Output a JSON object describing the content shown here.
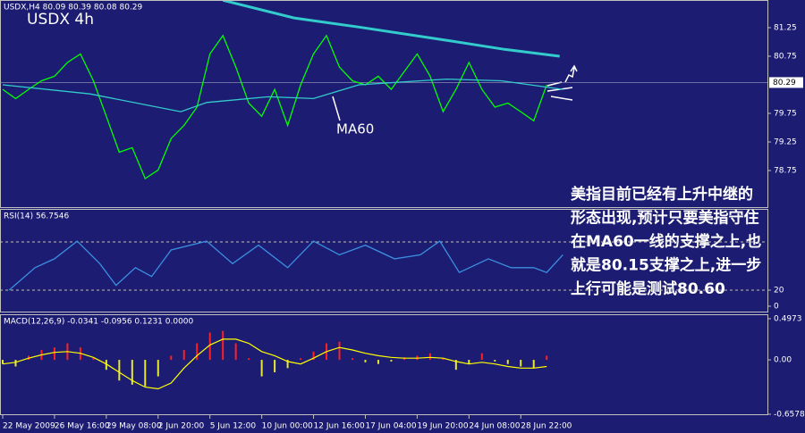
{
  "chart_data": [
    {
      "type": "line",
      "header": "USDX,H4  80.09 80.39 80.08 80.29",
      "title": "USDX 4h",
      "annotation": "MA60",
      "note_lines": [
        "美指目前已经有上升中继的",
        "形态出现,预计只要美指守住",
        "在MA60一线的支撑之上,也",
        "就是80.15支撑之上,进一步",
        "上行可能是测试80.60"
      ],
      "xlim": [
        0,
        237
      ],
      "ylim": [
        78.11,
        81.734
      ],
      "yticks": [
        81.25,
        80.75,
        79.75,
        79.25,
        78.75
      ],
      "last_price": 80.29,
      "series": [
        {
          "color": "#00ff00",
          "x": [
            0,
            4,
            8,
            12,
            16,
            20,
            24,
            28,
            32,
            36,
            40,
            44,
            48,
            52,
            56,
            60,
            64,
            68,
            72,
            76,
            80,
            84,
            88,
            92,
            96,
            100,
            104,
            108,
            112,
            116,
            120,
            124,
            128,
            132,
            136,
            140,
            144,
            148,
            152,
            156,
            160,
            164,
            168
          ],
          "values": [
            80.17,
            80.01,
            80.17,
            80.32,
            80.4,
            80.64,
            80.79,
            80.32,
            79.7,
            79.07,
            79.15,
            78.61,
            78.76,
            79.31,
            79.54,
            79.86,
            80.79,
            81.11,
            80.56,
            79.93,
            79.7,
            80.17,
            79.54,
            80.25,
            80.79,
            81.11,
            80.56,
            80.32,
            80.25,
            80.4,
            80.17,
            80.48,
            80.79,
            80.4,
            79.78,
            80.17,
            80.64,
            80.17,
            79.86,
            79.93,
            79.78,
            79.62,
            80.25
          ]
        },
        {
          "color": "#33cccc",
          "x": [
            0,
            27,
            55,
            63,
            82,
            96,
            110,
            137,
            154,
            173
          ],
          "values": [
            80.25,
            80.09,
            79.78,
            79.94,
            80.04,
            80.01,
            80.25,
            80.35,
            80.32,
            80.17
          ]
        },
        {
          "color": "#33cccc",
          "x": [
            68,
            90,
            110,
            137,
            155,
            172
          ],
          "values": [
            81.73,
            81.42,
            81.26,
            81.03,
            80.87,
            80.75
          ]
        }
      ]
    },
    {
      "type": "line",
      "header": "RSI(14) 56.7546",
      "xlim": [
        0,
        237
      ],
      "ylim": [
        0,
        100
      ],
      "yticks": [
        20,
        0
      ],
      "levels": [
        20,
        80
      ],
      "series": [
        {
          "color": "#3b8fe0",
          "x": [
            2,
            10,
            16,
            23,
            30,
            35,
            41,
            46,
            52,
            63,
            71,
            79,
            88,
            96,
            104,
            112,
            121,
            129,
            135,
            141,
            150,
            157,
            164,
            168,
            173
          ],
          "values": [
            20,
            48,
            59,
            81,
            53,
            26,
            48,
            37,
            70,
            81,
            53,
            76,
            48,
            81,
            64,
            76,
            59,
            64,
            81,
            42,
            59,
            48,
            48,
            42,
            64
          ]
        }
      ]
    },
    {
      "type": "bar",
      "header": "MACD(12,26,9) -0.0341 -0.0956 0.1231 0.0000",
      "xlim": [
        0,
        237
      ],
      "ylim": [
        -0.6578,
        0.4973
      ],
      "yticks": [
        0.4973,
        {
          "value": 0,
          "label": "0.00"
        },
        -0.6578
      ],
      "xticks": [
        {
          "value": 0,
          "label": "22 May 2009"
        },
        {
          "value": 16,
          "label": "26 May 16:00"
        },
        {
          "value": 32,
          "label": "29 May 08:00"
        },
        {
          "value": 48,
          "label": "2 Jun 20:00"
        },
        {
          "value": 64,
          "label": "5 Jun 12:00"
        },
        {
          "value": 80,
          "label": "10 Jun 00:00"
        },
        {
          "value": 96,
          "label": "12 Jun 16:00"
        },
        {
          "value": 112,
          "label": "17 Jun 04:00"
        },
        {
          "value": 128,
          "label": "19 Jun 20:00"
        },
        {
          "value": 144,
          "label": "24 Jun 08:00"
        },
        {
          "value": 160,
          "label": "28 Jun 22:00"
        }
      ],
      "x": [
        0,
        4,
        8,
        12,
        16,
        20,
        24,
        28,
        32,
        36,
        40,
        44,
        48,
        52,
        56,
        60,
        64,
        68,
        72,
        76,
        80,
        84,
        88,
        92,
        96,
        100,
        104,
        108,
        112,
        116,
        120,
        124,
        128,
        132,
        136,
        140,
        144,
        148,
        152,
        156,
        160,
        164,
        168
      ],
      "values": [
        -0.05,
        -0.08,
        0.05,
        0.12,
        0.15,
        0.2,
        0.15,
        0.02,
        -0.12,
        -0.25,
        -0.3,
        -0.32,
        -0.2,
        0.05,
        0.12,
        0.2,
        0.33,
        0.35,
        0.2,
        0.02,
        -0.2,
        -0.15,
        -0.1,
        0.02,
        0.1,
        0.2,
        0.22,
        0.02,
        -0.03,
        -0.05,
        -0.02,
        0.03,
        0.05,
        0.08,
        0.02,
        -0.12,
        -0.05,
        0.08,
        -0.02,
        -0.05,
        -0.08,
        -0.1,
        0.05
      ],
      "up_color": "#ff2020",
      "down_color": "#e8e830",
      "signal": {
        "color": "#ffff00",
        "values": [
          -0.05,
          -0.03,
          0.02,
          0.06,
          0.09,
          0.1,
          0.08,
          0.03,
          -0.05,
          -0.15,
          -0.25,
          -0.33,
          -0.35,
          -0.28,
          -0.1,
          0.05,
          0.18,
          0.25,
          0.25,
          0.2,
          0.1,
          0.05,
          -0.02,
          -0.05,
          0.02,
          0.1,
          0.15,
          0.12,
          0.08,
          0.05,
          0.03,
          0.02,
          0.02,
          0.03,
          0.02,
          -0.02,
          -0.05,
          -0.03,
          -0.05,
          -0.08,
          -0.1,
          -0.1,
          -0.08
        ]
      }
    }
  ]
}
